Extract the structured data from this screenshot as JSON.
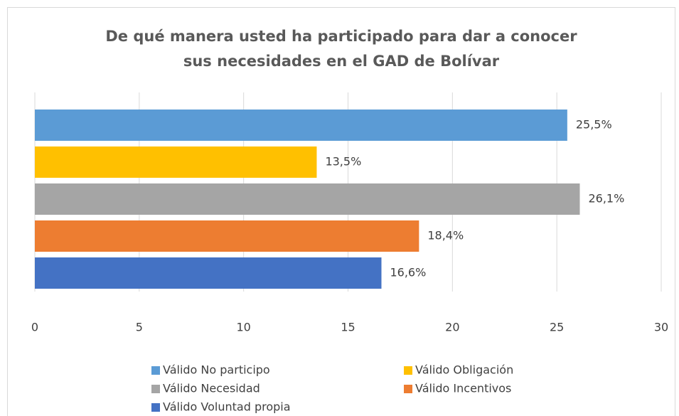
{
  "chart_data": {
    "type": "bar",
    "orientation": "horizontal",
    "title": [
      "De qué manera usted ha participado para dar a conocer",
      "sus necesidades en el GAD de Bolívar"
    ],
    "series": [
      {
        "name": "Válido No participo",
        "color": "#5b9bd5",
        "values": [
          25.5
        ],
        "value_labels": [
          "25,5%"
        ]
      },
      {
        "name": "Válido Obligación",
        "color": "#ffc000",
        "values": [
          13.5
        ],
        "value_labels": [
          "13,5%"
        ]
      },
      {
        "name": "Válido Necesidad",
        "color": "#a5a5a5",
        "values": [
          26.1
        ],
        "value_labels": [
          "26,1%"
        ]
      },
      {
        "name": "Válido Incentivos",
        "color": "#ed7d31",
        "values": [
          18.4
        ],
        "value_labels": [
          "18,4%"
        ]
      },
      {
        "name": "Válido Voluntad propia",
        "color": "#4472c4",
        "values": [
          16.6
        ],
        "value_labels": [
          "16,6%"
        ]
      }
    ],
    "xlim": [
      0,
      30
    ],
    "xticks": [
      0,
      5,
      10,
      15,
      20,
      25,
      30
    ],
    "grid": true,
    "legend": "bottom"
  }
}
